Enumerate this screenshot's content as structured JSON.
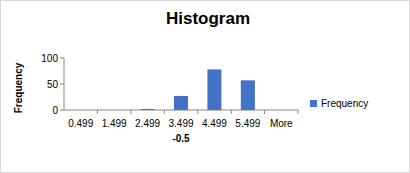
{
  "chart_data": {
    "type": "bar",
    "title": "Histogram",
    "x_label": "-0.5",
    "y_label": "Frequency",
    "categories": [
      "0.499",
      "1.499",
      "2.499",
      "3.499",
      "4.499",
      "5.499",
      "More"
    ],
    "series": [
      {
        "name": "Frequency",
        "color": "#4472c4",
        "values": [
          0,
          0,
          2,
          27,
          78,
          57,
          0
        ]
      }
    ],
    "ylim": [
      0,
      100
    ],
    "yticks": [
      0,
      50,
      100
    ],
    "grid": false,
    "legend": "right"
  }
}
